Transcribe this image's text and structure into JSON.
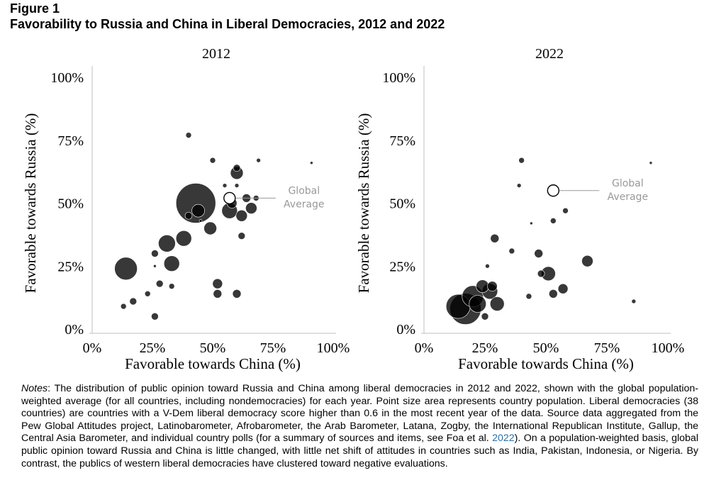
{
  "figure": {
    "label": "Figure 1",
    "title": "Favorability to Russia and China in Liberal Democracies, 2012 and 2022"
  },
  "chart_data": [
    {
      "type": "scatter",
      "title": "2012",
      "xlabel": "Favorable towards China (%)",
      "ylabel": "Favorable towards Russia (%)",
      "xlim": [
        0,
        100
      ],
      "ylim": [
        0,
        100
      ],
      "xticks": [
        "0%",
        "25%",
        "50%",
        "75%",
        "100%"
      ],
      "yticks": [
        "0%",
        "25%",
        "50%",
        "75%",
        "100%"
      ],
      "annotation": [
        "Global",
        "Average"
      ],
      "global_average": {
        "x": 57,
        "y": 52
      },
      "points": [
        {
          "x": 43,
          "y": 50,
          "r": 28
        },
        {
          "x": 14,
          "y": 24,
          "r": 16
        },
        {
          "x": 31,
          "y": 34,
          "r": 12
        },
        {
          "x": 33,
          "y": 26,
          "r": 11
        },
        {
          "x": 38,
          "y": 36,
          "r": 11
        },
        {
          "x": 57,
          "y": 47,
          "r": 11
        },
        {
          "x": 49,
          "y": 40,
          "r": 9
        },
        {
          "x": 44,
          "y": 47,
          "r": 9
        },
        {
          "x": 60,
          "y": 62,
          "r": 9
        },
        {
          "x": 62,
          "y": 45,
          "r": 8
        },
        {
          "x": 66,
          "y": 48,
          "r": 8
        },
        {
          "x": 58,
          "y": 50,
          "r": 7
        },
        {
          "x": 52,
          "y": 18,
          "r": 7
        },
        {
          "x": 52,
          "y": 14,
          "r": 6
        },
        {
          "x": 60,
          "y": 14,
          "r": 6
        },
        {
          "x": 64,
          "y": 52,
          "r": 6
        },
        {
          "x": 26,
          "y": 30,
          "r": 5
        },
        {
          "x": 26,
          "y": 5,
          "r": 5
        },
        {
          "x": 17,
          "y": 11,
          "r": 5
        },
        {
          "x": 28,
          "y": 18,
          "r": 5
        },
        {
          "x": 62,
          "y": 37,
          "r": 5
        },
        {
          "x": 40,
          "y": 45,
          "r": 5
        },
        {
          "x": 60,
          "y": 64,
          "r": 5
        },
        {
          "x": 23,
          "y": 14,
          "r": 4
        },
        {
          "x": 33,
          "y": 17,
          "r": 4
        },
        {
          "x": 13,
          "y": 9,
          "r": 4
        },
        {
          "x": 40,
          "y": 77,
          "r": 4
        },
        {
          "x": 50,
          "y": 67,
          "r": 4
        },
        {
          "x": 68,
          "y": 52,
          "r": 4
        },
        {
          "x": 60,
          "y": 57,
          "r": 3
        },
        {
          "x": 55,
          "y": 57,
          "r": 3
        },
        {
          "x": 69,
          "y": 67,
          "r": 3
        },
        {
          "x": 26,
          "y": 25,
          "r": 2
        },
        {
          "x": 91,
          "y": 66,
          "r": 2
        },
        {
          "x": 45,
          "y": 43,
          "r": 2
        }
      ]
    },
    {
      "type": "scatter",
      "title": "2022",
      "xlabel": "Favorable towards China (%)",
      "ylabel": "Favorable towards Russia (%)",
      "xlim": [
        0,
        100
      ],
      "ylim": [
        0,
        100
      ],
      "xticks": [
        "0%",
        "25%",
        "50%",
        "75%",
        "100%"
      ],
      "yticks": [
        "0%",
        "25%",
        "50%",
        "75%",
        "100%"
      ],
      "annotation": [
        "Global",
        "Average"
      ],
      "global_average": {
        "x": 53,
        "y": 55
      },
      "points": [
        {
          "x": 17,
          "y": 8,
          "r": 22
        },
        {
          "x": 14,
          "y": 9,
          "r": 17
        },
        {
          "x": 20,
          "y": 13,
          "r": 15
        },
        {
          "x": 22,
          "y": 10,
          "r": 12
        },
        {
          "x": 27,
          "y": 15,
          "r": 11
        },
        {
          "x": 30,
          "y": 10,
          "r": 10
        },
        {
          "x": 24,
          "y": 17,
          "r": 9
        },
        {
          "x": 51,
          "y": 22,
          "r": 10
        },
        {
          "x": 67,
          "y": 27,
          "r": 8
        },
        {
          "x": 28,
          "y": 17,
          "r": 7
        },
        {
          "x": 57,
          "y": 16,
          "r": 7
        },
        {
          "x": 29,
          "y": 36,
          "r": 6
        },
        {
          "x": 47,
          "y": 30,
          "r": 6
        },
        {
          "x": 53,
          "y": 14,
          "r": 6
        },
        {
          "x": 48,
          "y": 22,
          "r": 5
        },
        {
          "x": 25,
          "y": 5,
          "r": 5
        },
        {
          "x": 43,
          "y": 13,
          "r": 4
        },
        {
          "x": 40,
          "y": 67,
          "r": 4
        },
        {
          "x": 58,
          "y": 47,
          "r": 4
        },
        {
          "x": 53,
          "y": 43,
          "r": 4
        },
        {
          "x": 36,
          "y": 31,
          "r": 4
        },
        {
          "x": 86,
          "y": 11,
          "r": 3
        },
        {
          "x": 39,
          "y": 57,
          "r": 3
        },
        {
          "x": 26,
          "y": 25,
          "r": 3
        },
        {
          "x": 93,
          "y": 66,
          "r": 2
        },
        {
          "x": 44,
          "y": 42,
          "r": 2
        }
      ]
    }
  ],
  "notes": {
    "lead": "Notes",
    "body": ": The distribution of public opinion toward Russia and China among liberal democracies in 2012 and 2022, shown with the global population-weighted average (for all countries, including nondemocracies) for each year. Point size area represents country population. Liberal democracies (38 countries) are countries with a V-Dem liberal democracy score higher than 0.6 in the most recent year of the data. Source data aggregated from the Pew Global Attitudes project, Latinobarometer, Afrobarometer, the Arab Barometer, Latana, Zogby, the International Republican Institute, Gallup, the Central Asia Barometer, and individual country polls (for a summary of sources and items, see Foa et al. ",
    "ref": "2022",
    "tail": "). On a population-weighted basis, global public opinion toward Russia and China is little changed, with little net shift of attitudes in countries such as India, Pakistan, Indonesia, or Nigeria. By contrast, the publics of western liberal democracies have clustered toward negative evaluations."
  },
  "colors": {
    "point_fill": "#000000",
    "point_opacity": "0.78",
    "point_stroke": "#ffffff",
    "axis": "#bfbfbf",
    "annotation": "#999999",
    "ref_link": "#2a6fa8"
  }
}
